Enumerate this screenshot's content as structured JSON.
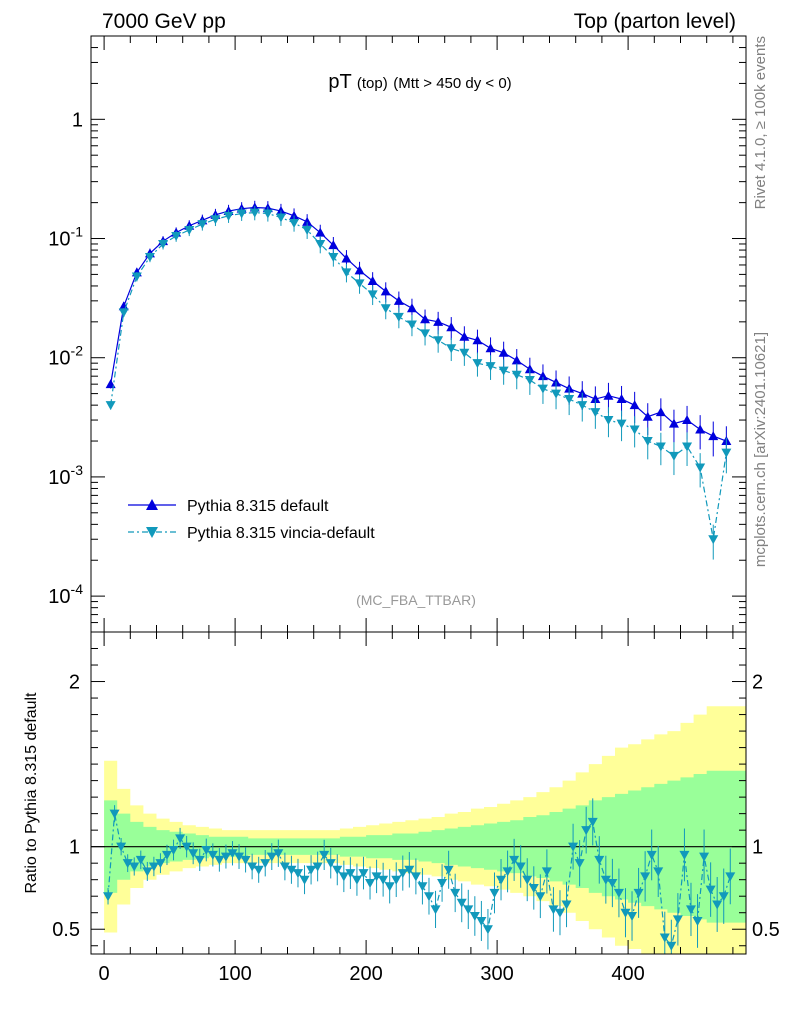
{
  "header": {
    "left": "7000 GeV pp",
    "right": "Top (parton level)"
  },
  "side_labels": {
    "rivet": "Rivet 4.1.0, ≥ 100k events",
    "source": "mcplots.cern.ch [arXiv:2401.10621]"
  },
  "colors": {
    "default": "#0000dd",
    "vincia": "#1199bb",
    "band_outer": "#ffff99",
    "band_inner": "#99ff99",
    "watermark": "#999999"
  },
  "chart_data": [
    {
      "type": "line",
      "panel": "main",
      "title": "pT",
      "title_sub": "(top)",
      "title_cut": "(Mtt > 450 dy < 0)",
      "watermark": "(MC_FBA_TTBAR)",
      "yscale": "log",
      "xlim": [
        -10,
        490
      ],
      "ylim": [
        5e-05,
        5
      ],
      "ytick_labels": [
        "1",
        "10^-1",
        "10^-2",
        "10^-3",
        "10^-4"
      ],
      "legend_position": "lower-left",
      "series": [
        {
          "name": "Pythia 8.315 default",
          "marker": "triangle-up",
          "x": [
            5,
            15,
            25,
            35,
            45,
            55,
            65,
            75,
            85,
            95,
            105,
            115,
            125,
            135,
            145,
            155,
            165,
            175,
            185,
            195,
            205,
            215,
            225,
            235,
            245,
            255,
            265,
            275,
            285,
            295,
            305,
            315,
            325,
            335,
            345,
            355,
            365,
            375,
            385,
            395,
            405,
            415,
            425,
            435,
            445,
            455,
            465,
            475
          ],
          "y": [
            0.006,
            0.027,
            0.052,
            0.075,
            0.095,
            0.112,
            0.128,
            0.142,
            0.158,
            0.17,
            0.178,
            0.182,
            0.18,
            0.17,
            0.155,
            0.138,
            0.112,
            0.088,
            0.068,
            0.054,
            0.044,
            0.036,
            0.03,
            0.026,
            0.021,
            0.02,
            0.018,
            0.015,
            0.014,
            0.012,
            0.011,
            0.0095,
            0.008,
            0.007,
            0.0062,
            0.0055,
            0.005,
            0.0045,
            0.0048,
            0.0045,
            0.004,
            0.0032,
            0.0035,
            0.0028,
            0.003,
            0.0025,
            0.0022,
            0.002
          ]
        },
        {
          "name": "Pythia 8.315 vincia-default",
          "marker": "triangle-down",
          "x": [
            5,
            15,
            25,
            35,
            45,
            55,
            65,
            75,
            85,
            95,
            105,
            115,
            125,
            135,
            145,
            155,
            165,
            175,
            185,
            195,
            205,
            215,
            225,
            235,
            245,
            255,
            265,
            275,
            285,
            295,
            305,
            315,
            325,
            335,
            345,
            355,
            365,
            375,
            385,
            395,
            405,
            415,
            425,
            435,
            445,
            455,
            465,
            475
          ],
          "y": [
            0.004,
            0.024,
            0.048,
            0.07,
            0.09,
            0.105,
            0.118,
            0.132,
            0.145,
            0.155,
            0.162,
            0.165,
            0.162,
            0.15,
            0.135,
            0.118,
            0.09,
            0.07,
            0.052,
            0.042,
            0.034,
            0.026,
            0.022,
            0.019,
            0.016,
            0.014,
            0.012,
            0.011,
            0.009,
            0.0085,
            0.0078,
            0.0072,
            0.0065,
            0.0055,
            0.005,
            0.0045,
            0.004,
            0.0035,
            0.003,
            0.0028,
            0.0025,
            0.002,
            0.0018,
            0.0015,
            0.0018,
            0.0012,
            0.0003,
            0.0016
          ]
        }
      ]
    },
    {
      "type": "line",
      "panel": "ratio",
      "ylabel": "Ratio to Pythia 8.315 default",
      "xlim": [
        -10,
        490
      ],
      "ylim": [
        0.35,
        2.3
      ],
      "ytick_labels": [
        "0.5",
        "1",
        "2"
      ],
      "xtick_labels": [
        "0",
        "100",
        "200",
        "300",
        "400"
      ],
      "band_x": [
        0,
        10,
        20,
        30,
        40,
        50,
        60,
        70,
        80,
        90,
        100,
        110,
        120,
        130,
        140,
        150,
        160,
        170,
        180,
        190,
        200,
        210,
        220,
        230,
        240,
        250,
        260,
        270,
        280,
        290,
        300,
        310,
        320,
        330,
        340,
        350,
        360,
        370,
        380,
        390,
        400,
        410,
        420,
        430,
        440,
        450,
        460,
        470,
        480
      ],
      "band_outer_halfwidth": [
        0.52,
        0.35,
        0.25,
        0.2,
        0.17,
        0.15,
        0.13,
        0.12,
        0.11,
        0.1,
        0.1,
        0.1,
        0.1,
        0.1,
        0.1,
        0.1,
        0.1,
        0.1,
        0.11,
        0.12,
        0.13,
        0.14,
        0.15,
        0.16,
        0.17,
        0.18,
        0.2,
        0.21,
        0.23,
        0.24,
        0.26,
        0.28,
        0.3,
        0.33,
        0.36,
        0.4,
        0.45,
        0.5,
        0.55,
        0.6,
        0.62,
        0.65,
        0.68,
        0.7,
        0.75,
        0.8,
        0.85,
        0.85,
        0.85
      ],
      "band_inner_halfwidth": [
        0.28,
        0.2,
        0.15,
        0.12,
        0.1,
        0.09,
        0.08,
        0.07,
        0.06,
        0.06,
        0.06,
        0.05,
        0.05,
        0.05,
        0.05,
        0.05,
        0.05,
        0.05,
        0.06,
        0.06,
        0.07,
        0.07,
        0.08,
        0.08,
        0.09,
        0.1,
        0.11,
        0.12,
        0.13,
        0.14,
        0.15,
        0.16,
        0.18,
        0.19,
        0.21,
        0.23,
        0.25,
        0.28,
        0.3,
        0.32,
        0.34,
        0.36,
        0.38,
        0.4,
        0.42,
        0.44,
        0.46,
        0.46,
        0.46
      ],
      "series": [
        {
          "name": "Pythia 8.315 vincia-default",
          "marker": "triangle-down",
          "x": [
            3,
            8,
            13,
            18,
            23,
            28,
            33,
            38,
            43,
            48,
            53,
            58,
            63,
            68,
            73,
            78,
            83,
            88,
            93,
            98,
            103,
            108,
            113,
            118,
            123,
            128,
            133,
            138,
            143,
            148,
            153,
            158,
            163,
            168,
            173,
            178,
            183,
            188,
            193,
            198,
            203,
            208,
            213,
            218,
            223,
            228,
            233,
            238,
            243,
            248,
            253,
            258,
            263,
            268,
            273,
            278,
            283,
            288,
            293,
            298,
            303,
            308,
            313,
            318,
            323,
            328,
            333,
            338,
            343,
            348,
            353,
            358,
            363,
            368,
            373,
            378,
            383,
            388,
            393,
            398,
            403,
            408,
            413,
            418,
            423,
            428,
            433,
            438,
            443,
            448,
            453,
            458,
            463,
            468,
            473,
            478
          ],
          "y": [
            0.7,
            1.2,
            1.0,
            0.9,
            0.88,
            0.92,
            0.85,
            0.88,
            0.9,
            0.95,
            0.98,
            1.05,
            1.0,
            0.96,
            0.92,
            0.98,
            0.95,
            0.92,
            0.94,
            0.96,
            0.94,
            0.92,
            0.88,
            0.86,
            0.9,
            0.94,
            0.96,
            0.88,
            0.86,
            0.84,
            0.8,
            0.86,
            0.88,
            0.95,
            0.9,
            0.86,
            0.82,
            0.84,
            0.8,
            0.84,
            0.78,
            0.82,
            0.8,
            0.76,
            0.8,
            0.84,
            0.86,
            0.82,
            0.76,
            0.7,
            0.62,
            0.78,
            0.86,
            0.72,
            0.66,
            0.62,
            0.58,
            0.55,
            0.5,
            0.72,
            0.8,
            0.85,
            0.92,
            0.88,
            0.8,
            0.75,
            0.7,
            0.85,
            0.62,
            0.6,
            0.65,
            1.0,
            0.9,
            1.1,
            1.15,
            0.92,
            0.8,
            0.78,
            0.72,
            0.6,
            0.58,
            0.72,
            0.82,
            0.95,
            0.85,
            0.45,
            0.4,
            0.56,
            0.95,
            0.62,
            0.55,
            0.94,
            0.74,
            0.65,
            0.7,
            0.82
          ]
        }
      ]
    }
  ]
}
